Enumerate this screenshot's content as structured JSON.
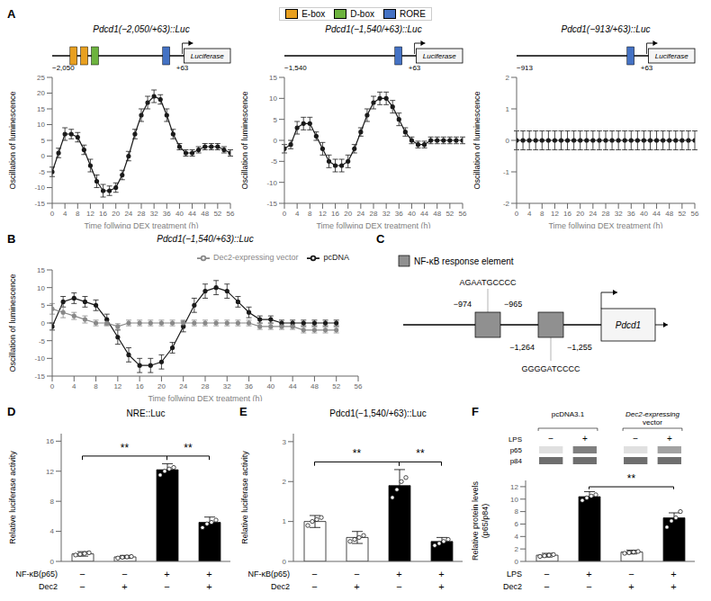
{
  "chart_data": [
    {
      "type": "line",
      "panel": "A",
      "title": "Pdcd1(−2,050/+63)::Luc",
      "x_label": "Time follwing DEX treatment (h)",
      "y_label": "Oscillation of luminescence",
      "element_legend": [
        {
          "name": "E-box",
          "color": "#E8A020"
        },
        {
          "name": "D-box",
          "color": "#6DB33F"
        },
        {
          "name": "RORE",
          "color": "#4472C4"
        }
      ],
      "construct": {
        "start": "−2,050",
        "end": "+63",
        "reporter": "Luciferase",
        "elements": [
          "E-box",
          "E-box",
          "D-box",
          "RORE"
        ]
      },
      "x": [
        0,
        2,
        4,
        6,
        8,
        10,
        12,
        14,
        16,
        18,
        20,
        22,
        24,
        26,
        28,
        30,
        32,
        34,
        36,
        38,
        40,
        42,
        44,
        46,
        48,
        50,
        52,
        54,
        56
      ],
      "series": [
        {
          "color": "#1a1a1a",
          "marker": "circle",
          "values": [
            -5,
            1,
            7,
            7,
            6,
            2,
            -3,
            -8,
            -11,
            -11,
            -10,
            -6,
            0,
            7,
            13,
            17,
            19,
            18,
            13,
            7,
            3,
            1,
            1,
            2,
            3,
            3,
            3,
            2,
            1
          ],
          "errors": [
            1.5,
            1.5,
            2,
            1.5,
            1.5,
            1.5,
            2,
            2,
            2,
            1.5,
            1.5,
            1.5,
            1.5,
            1.5,
            2,
            2,
            2,
            1.5,
            2,
            1.5,
            1,
            1,
            1,
            1,
            1,
            1,
            1,
            1,
            1
          ]
        }
      ],
      "xlim": [
        0,
        56
      ],
      "xticks": [
        0,
        4,
        8,
        12,
        16,
        20,
        24,
        28,
        32,
        36,
        40,
        44,
        48,
        52,
        56
      ],
      "ylim": [
        -15,
        25
      ],
      "yticks": [
        -15,
        -10,
        -5,
        0,
        5,
        10,
        15,
        20,
        25
      ]
    },
    {
      "type": "line",
      "title": "Pdcd1(−1,540/+63)::Luc",
      "x_label": "Time follwing DEX treatment (h)",
      "y_label": "Oscillation of luminescence",
      "construct": {
        "start": "−1,540",
        "end": "+63",
        "reporter": "Luciferase",
        "elements": [
          "RORE"
        ]
      },
      "x": [
        0,
        2,
        4,
        6,
        8,
        10,
        12,
        14,
        16,
        18,
        20,
        22,
        24,
        26,
        28,
        30,
        32,
        34,
        36,
        38,
        40,
        42,
        44,
        46,
        48,
        50,
        52,
        54,
        56
      ],
      "series": [
        {
          "color": "#1a1a1a",
          "marker": "circle",
          "values": [
            -2,
            -1,
            3,
            4,
            4,
            1,
            -2,
            -5,
            -6,
            -6,
            -5,
            -2,
            2,
            6,
            9,
            10,
            10,
            8,
            5,
            2,
            0,
            -1,
            -1,
            0,
            0,
            0,
            0,
            0,
            0
          ],
          "errors": [
            1,
            1,
            1.5,
            1.5,
            1.5,
            1,
            1.5,
            1.5,
            1.5,
            1.5,
            1.5,
            1,
            1,
            1.5,
            1.5,
            1.5,
            1.5,
            1.5,
            1.5,
            1,
            0.8,
            0.8,
            0.8,
            0.8,
            0.8,
            0.8,
            0.8,
            0.8,
            0.8
          ]
        }
      ],
      "xlim": [
        0,
        56
      ],
      "xticks": [
        0,
        4,
        8,
        12,
        16,
        20,
        24,
        28,
        32,
        36,
        40,
        44,
        48,
        52,
        56
      ],
      "ylim": [
        -15,
        15
      ],
      "yticks": [
        -15,
        -10,
        -5,
        0,
        5,
        10,
        15
      ]
    },
    {
      "type": "line",
      "title": "Pdcd1(−913/+63)::Luc",
      "x_label": "Time follwing DEX treatment (h)",
      "y_label": "Oscillation of luminescence",
      "construct": {
        "start": "−913",
        "end": "+63",
        "reporter": "Luciferase",
        "elements": [
          "RORE"
        ]
      },
      "x": [
        0,
        2,
        4,
        6,
        8,
        10,
        12,
        14,
        16,
        18,
        20,
        22,
        24,
        26,
        28,
        30,
        32,
        34,
        36,
        38,
        40,
        42,
        44,
        46,
        48,
        50,
        52,
        54,
        56
      ],
      "series": [
        {
          "color": "#1a1a1a",
          "marker": "circle",
          "values": [
            0,
            0,
            0,
            0,
            0,
            0,
            0,
            0,
            0,
            0,
            0,
            0,
            0,
            0,
            0,
            0,
            0,
            0,
            0,
            0,
            0,
            0,
            0,
            0,
            0,
            0,
            0,
            0,
            0
          ],
          "errors": [
            0.3,
            0.3,
            0.3,
            0.3,
            0.3,
            0.3,
            0.3,
            0.3,
            0.3,
            0.3,
            0.3,
            0.3,
            0.3,
            0.3,
            0.3,
            0.3,
            0.3,
            0.3,
            0.3,
            0.3,
            0.3,
            0.3,
            0.3,
            0.3,
            0.3,
            0.3,
            0.3,
            0.3,
            0.3
          ]
        }
      ],
      "xlim": [
        0,
        56
      ],
      "xticks": [
        0,
        4,
        8,
        12,
        16,
        20,
        24,
        28,
        32,
        36,
        40,
        44,
        48,
        52,
        56
      ],
      "ylim": [
        -2,
        2
      ],
      "yticks": [
        -2,
        -1,
        0,
        1,
        2
      ]
    },
    {
      "type": "line",
      "panel": "B",
      "title": "Pdcd1(−1,540/+63)::Luc",
      "x_label": "Time follwing DEX treatment (h)",
      "y_label": "Oscillation of luminescence",
      "legend": "upper right",
      "x": [
        0,
        2,
        4,
        6,
        8,
        10,
        12,
        14,
        16,
        18,
        20,
        22,
        24,
        26,
        28,
        30,
        32,
        34,
        36,
        38,
        40,
        42,
        44,
        46,
        48,
        50,
        52
      ],
      "series": [
        {
          "name": "pcDNA",
          "color": "#1a1a1a",
          "marker": "circle",
          "values": [
            -1,
            6,
            7,
            6,
            5,
            1,
            -4,
            -9,
            -12,
            -12,
            -11,
            -7,
            -1,
            5,
            9,
            10,
            9,
            6,
            3,
            1,
            1,
            0,
            0,
            0,
            0,
            0,
            0
          ],
          "errors": [
            1,
            1.5,
            1.5,
            1.5,
            1.5,
            1.5,
            2,
            2,
            2,
            2,
            2,
            1.5,
            1.5,
            2,
            2,
            2,
            2,
            1.5,
            1.5,
            1,
            1,
            0.8,
            0.8,
            0.8,
            0.8,
            0.8,
            0.8
          ]
        },
        {
          "name": "Dec2-expressing vector",
          "color": "#888888",
          "marker": "circle",
          "values": [
            4,
            3,
            2,
            1,
            0,
            0,
            -1,
            0,
            0,
            0,
            0,
            0,
            0,
            0,
            0,
            0,
            0,
            0,
            0,
            -1,
            -1,
            -1,
            -1,
            -2,
            -2,
            -2,
            -2
          ],
          "errors": [
            1.5,
            1.5,
            1,
            1,
            0.8,
            0.8,
            0.8,
            0.8,
            0.8,
            0.8,
            0.8,
            0.8,
            0.8,
            0.8,
            0.8,
            0.8,
            0.8,
            0.8,
            0.8,
            0.8,
            0.8,
            0.8,
            0.8,
            0.8,
            0.8,
            0.8,
            0.8
          ]
        }
      ],
      "xlim": [
        0,
        56
      ],
      "xticks": [
        0,
        4,
        8,
        12,
        16,
        20,
        24,
        28,
        32,
        36,
        40,
        44,
        48,
        52,
        56
      ],
      "ylim": [
        -15,
        15
      ],
      "yticks": [
        -15,
        -10,
        -5,
        0,
        5,
        10,
        15
      ]
    },
    {
      "type": "diagram",
      "panel": "C",
      "legend_label": "NF-κB response element",
      "gene": "Pdcd1",
      "sites": [
        {
          "sequence": "AGAATGCCCC",
          "start": "−974",
          "end": "−965"
        },
        {
          "sequence": "GGGGATCCCC",
          "start": "−1,264",
          "end": "−1,255"
        }
      ]
    },
    {
      "type": "bar",
      "panel": "D",
      "title": "NRE::Luc",
      "y_label": "Relative luciferase activity",
      "values": [
        1.0,
        0.6,
        12.2,
        5.2
      ],
      "errors": [
        0.3,
        0.2,
        0.8,
        0.7
      ],
      "colors": [
        "white",
        "white",
        "black",
        "black"
      ],
      "points": [
        [
          0.85,
          0.95,
          1.05,
          1.15
        ],
        [
          0.45,
          0.55,
          0.6,
          0.65
        ],
        [
          11.5,
          12.0,
          12.3,
          12.5
        ],
        [
          4.5,
          5.0,
          5.2,
          5.5
        ]
      ],
      "conditions": [
        {
          "label": "NF-κB(p65)",
          "values": [
            "−",
            "−",
            "+",
            "+"
          ]
        },
        {
          "label": "Dec2",
          "values": [
            "−",
            "+",
            "−",
            "+"
          ]
        }
      ],
      "significance": [
        {
          "from": 0,
          "to": 2,
          "label": "**"
        },
        {
          "from": 2,
          "to": 3,
          "label": "**"
        }
      ],
      "ylim": [
        0,
        17
      ],
      "yticks": [
        0,
        4,
        8,
        12,
        16
      ],
      "tick_labels": "y"
    },
    {
      "type": "bar",
      "panel": "E",
      "title": "Pdcd1(−1,540/+63)::Luc",
      "y_label": "Relative luciferase activity",
      "values": [
        1.0,
        0.6,
        1.9,
        0.5
      ],
      "errors": [
        0.15,
        0.15,
        0.4,
        0.1
      ],
      "colors": [
        "white",
        "white",
        "black",
        "black"
      ],
      "points": [
        [
          0.9,
          1.0,
          1.05,
          1.1
        ],
        [
          0.5,
          0.55,
          0.6,
          0.65
        ],
        [
          1.6,
          1.8,
          2.0,
          2.1
        ],
        [
          0.4,
          0.45,
          0.5,
          0.55
        ]
      ],
      "conditions": [
        {
          "label": "NF-κB(p65)",
          "values": [
            "−",
            "−",
            "+",
            "+"
          ]
        },
        {
          "label": "Dec2",
          "values": [
            "−",
            "+",
            "−",
            "+"
          ]
        }
      ],
      "significance": [
        {
          "from": 0,
          "to": 2,
          "label": "**"
        },
        {
          "from": 2,
          "to": 3,
          "label": "**"
        }
      ],
      "ylim": [
        0,
        3.2
      ],
      "yticks": [
        0,
        1,
        2,
        3
      ],
      "tick_labels": "y"
    },
    {
      "type": "bar",
      "panel": "F",
      "y_label": "Relative protein levels\n(p65/p84)",
      "values": [
        1.0,
        10.4,
        1.5,
        7.0
      ],
      "errors": [
        0.3,
        0.8,
        0.3,
        0.8
      ],
      "colors": [
        "white",
        "black",
        "white",
        "black"
      ],
      "points": [
        [
          0.8,
          0.9,
          1.0,
          1.1
        ],
        [
          9.8,
          10.2,
          10.5,
          10.7
        ],
        [
          1.3,
          1.4,
          1.5,
          1.6
        ],
        [
          5.5,
          6.5,
          7.0,
          8.0
        ]
      ],
      "conditions": [
        {
          "label": "LPS",
          "values": [
            "−",
            "+",
            "−",
            "+"
          ]
        },
        {
          "label": "Dec2",
          "values": [
            "−",
            "−",
            "+",
            "+"
          ]
        }
      ],
      "significance": [
        {
          "from": 1,
          "to": 3,
          "label": "**"
        }
      ],
      "blot": {
        "groups": [
          [
            "pcDNA3.1"
          ],
          [
            "Dec2-expressing",
            "vector"
          ]
        ],
        "condition": {
          "label": "LPS",
          "values": [
            "−",
            "+",
            "−",
            "+"
          ]
        },
        "bands": [
          "p65",
          "p84"
        ]
      },
      "ylim": [
        0,
        13
      ],
      "yticks": [
        0,
        2,
        4,
        6,
        8,
        10,
        12
      ],
      "tick_labels": "y"
    }
  ]
}
